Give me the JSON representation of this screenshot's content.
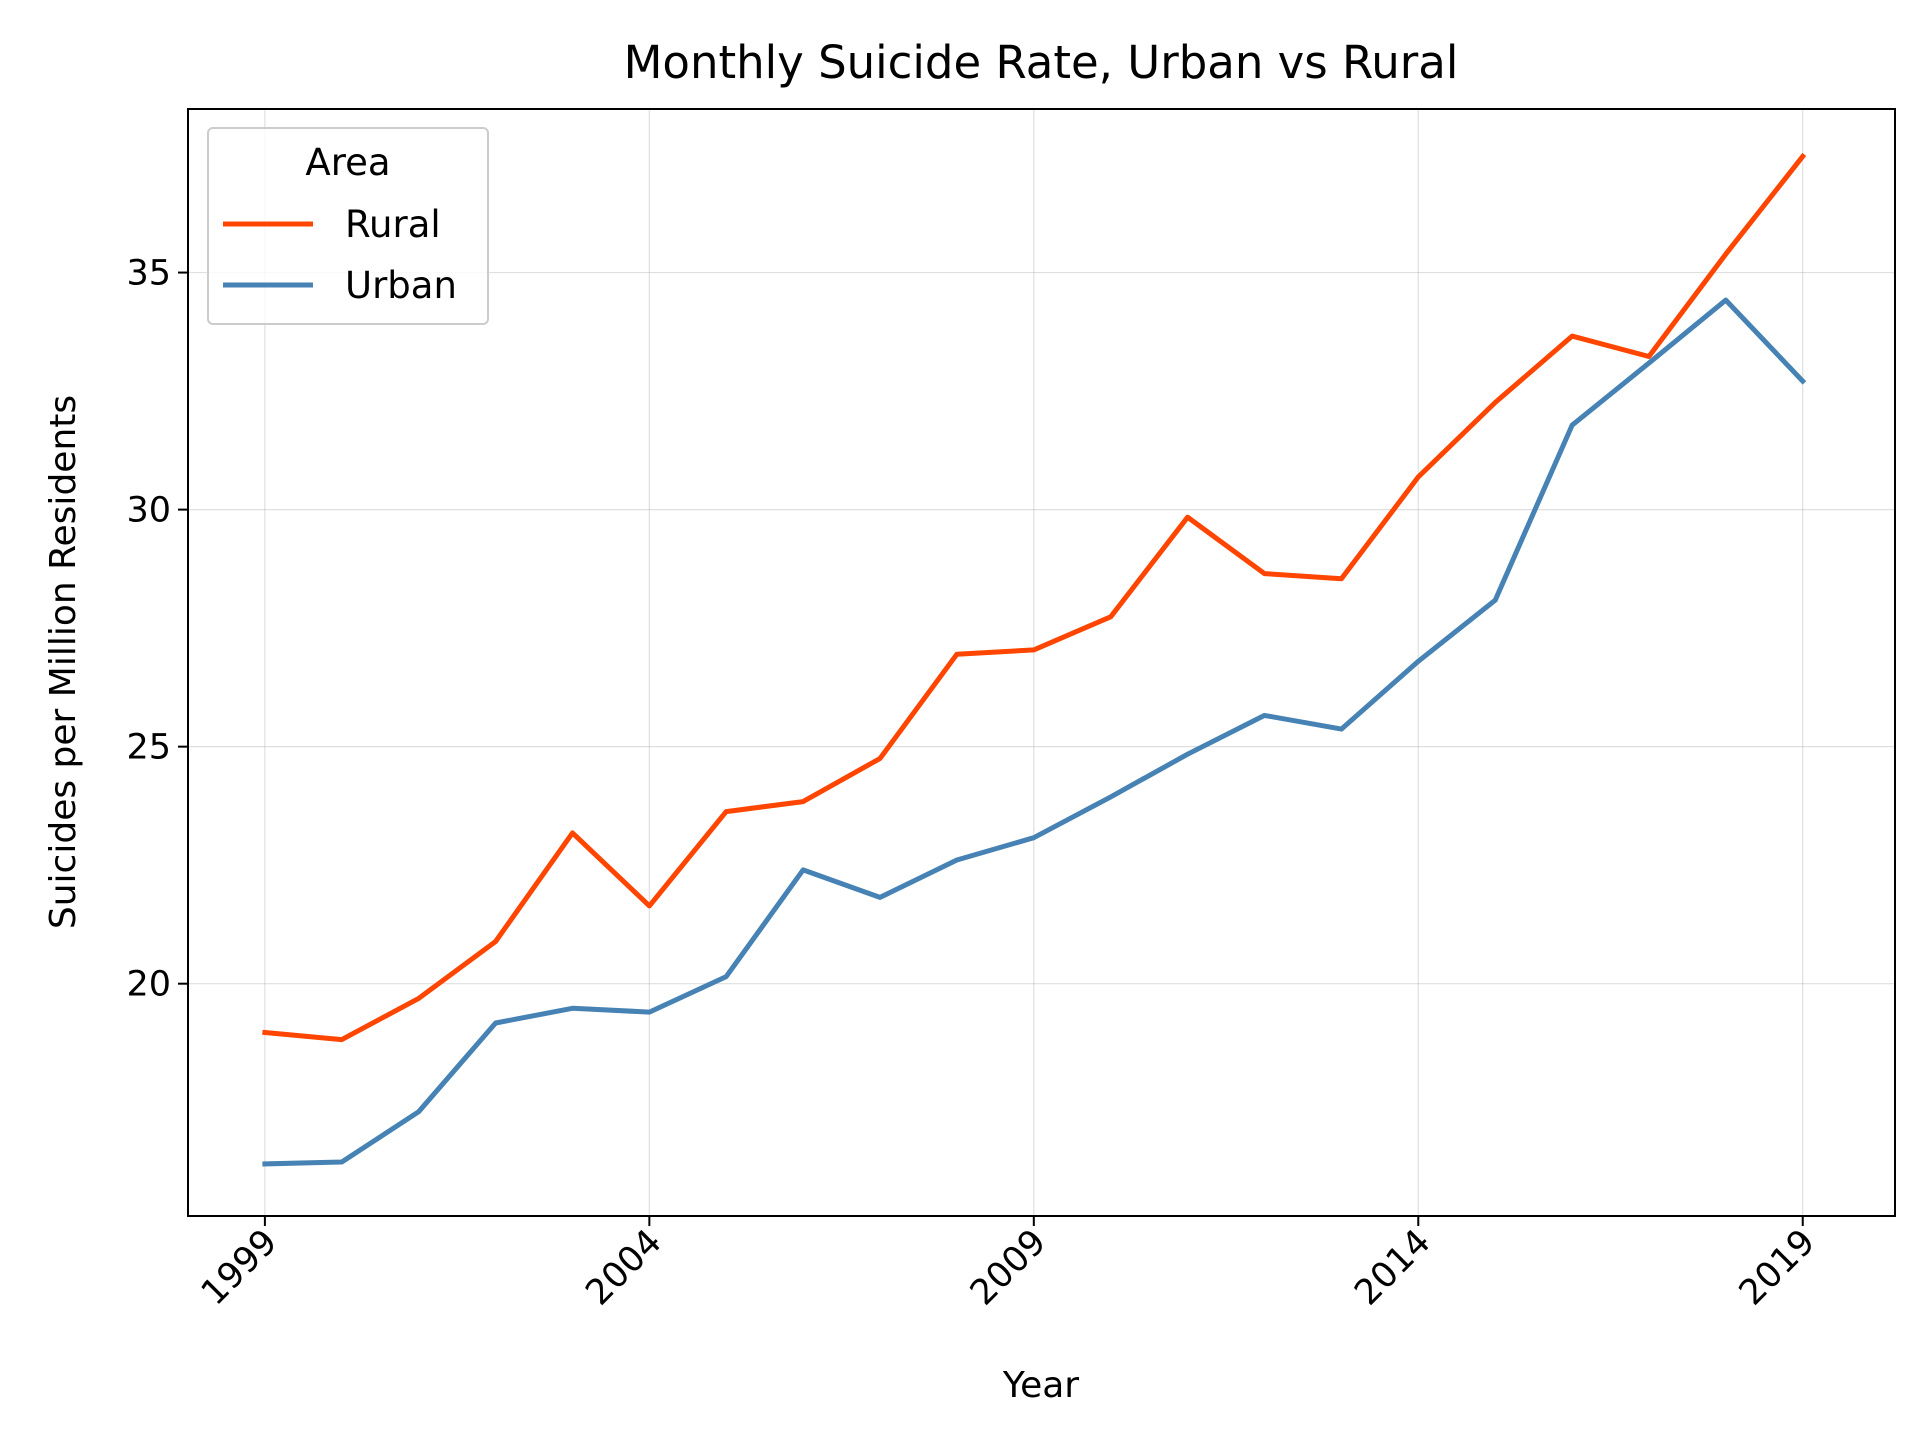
{
  "chart_data": {
    "type": "line",
    "title": "Monthly Suicide Rate, Urban vs Rural",
    "xlabel": "Year",
    "ylabel": "Suicides per Million Residents",
    "x": [
      1999,
      2000,
      2001,
      2002,
      2003,
      2004,
      2005,
      2006,
      2007,
      2008,
      2009,
      2010,
      2011,
      2012,
      2013,
      2014,
      2015,
      2016,
      2017,
      2018,
      2019
    ],
    "series": [
      {
        "name": "Rural",
        "color": "#ff4500",
        "values": [
          18.97,
          18.82,
          19.69,
          20.89,
          23.18,
          21.64,
          23.63,
          23.84,
          24.75,
          26.95,
          27.04,
          27.74,
          29.84,
          28.65,
          28.54,
          30.69,
          32.26,
          33.66,
          33.23,
          35.39,
          37.45
        ]
      },
      {
        "name": "Urban",
        "color": "#4682b4",
        "values": [
          16.2,
          16.24,
          17.3,
          19.17,
          19.48,
          19.4,
          20.15,
          22.4,
          21.82,
          22.61,
          23.08,
          23.94,
          24.84,
          25.66,
          25.37,
          26.8,
          28.09,
          31.78,
          33.09,
          34.42,
          32.71
        ]
      }
    ],
    "xlim": [
      1998,
      2020.2
    ],
    "ylim": [
      15.1,
      38.45
    ],
    "x_ticks": [
      1999,
      2004,
      2009,
      2014,
      2019
    ],
    "x_tick_labels": [
      "1999",
      "2004",
      "2009",
      "2014",
      "2019"
    ],
    "y_ticks": [
      20,
      25,
      30,
      35
    ],
    "y_tick_labels": [
      "20",
      "25",
      "30",
      "35"
    ],
    "grid": true,
    "legend": {
      "title": "Area",
      "position": "top-left",
      "entries": [
        "Rural",
        "Urban"
      ]
    }
  }
}
